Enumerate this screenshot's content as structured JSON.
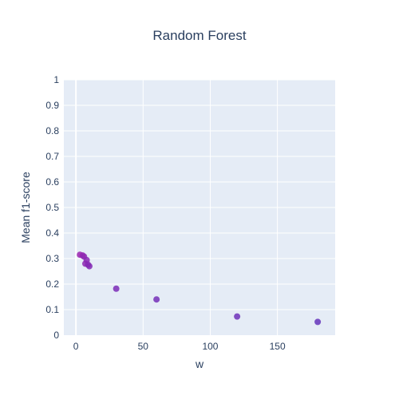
{
  "chart_data": {
    "type": "scatter",
    "title": "Random Forest",
    "xlabel": "w",
    "ylabel": "Mean f1-score",
    "xlim": [
      -9,
      193
    ],
    "ylim": [
      0,
      1
    ],
    "x_ticks": [
      0,
      50,
      100,
      150
    ],
    "x_tick_labels": [
      "0",
      "50",
      "100",
      "150"
    ],
    "y_ticks": [
      0,
      0.1,
      0.2,
      0.3,
      0.4,
      0.5,
      0.6,
      0.7,
      0.8,
      0.9,
      1
    ],
    "y_tick_labels": [
      "0",
      "0.1",
      "0.2",
      "0.3",
      "0.4",
      "0.5",
      "0.6",
      "0.7",
      "0.8",
      "0.9",
      "1"
    ],
    "grid": true,
    "legend": false,
    "colors": {
      "plot_bg": "#e5ecf6",
      "grid": "#ffffff",
      "text": "#2a3f5f"
    },
    "series": [
      {
        "points": [
          {
            "x": 3,
            "y": 0.315,
            "color": "#9c27b0"
          },
          {
            "x": 5,
            "y": 0.312,
            "color": "#9527b1"
          },
          {
            "x": 6,
            "y": 0.308,
            "color": "#8e28b2"
          },
          {
            "x": 7,
            "y": 0.28,
            "color": "#8c27b2"
          },
          {
            "x": 8,
            "y": 0.294,
            "color": "#8a28b3"
          },
          {
            "x": 9,
            "y": 0.276,
            "color": "#8629b3"
          },
          {
            "x": 10,
            "y": 0.27,
            "color": "#8229b4"
          },
          {
            "x": 30,
            "y": 0.182,
            "color": "#7c2db7"
          },
          {
            "x": 60,
            "y": 0.14,
            "color": "#7530b8"
          },
          {
            "x": 120,
            "y": 0.073,
            "color": "#6e33ba"
          },
          {
            "x": 180,
            "y": 0.052,
            "color": "#6535bb"
          }
        ]
      }
    ]
  }
}
